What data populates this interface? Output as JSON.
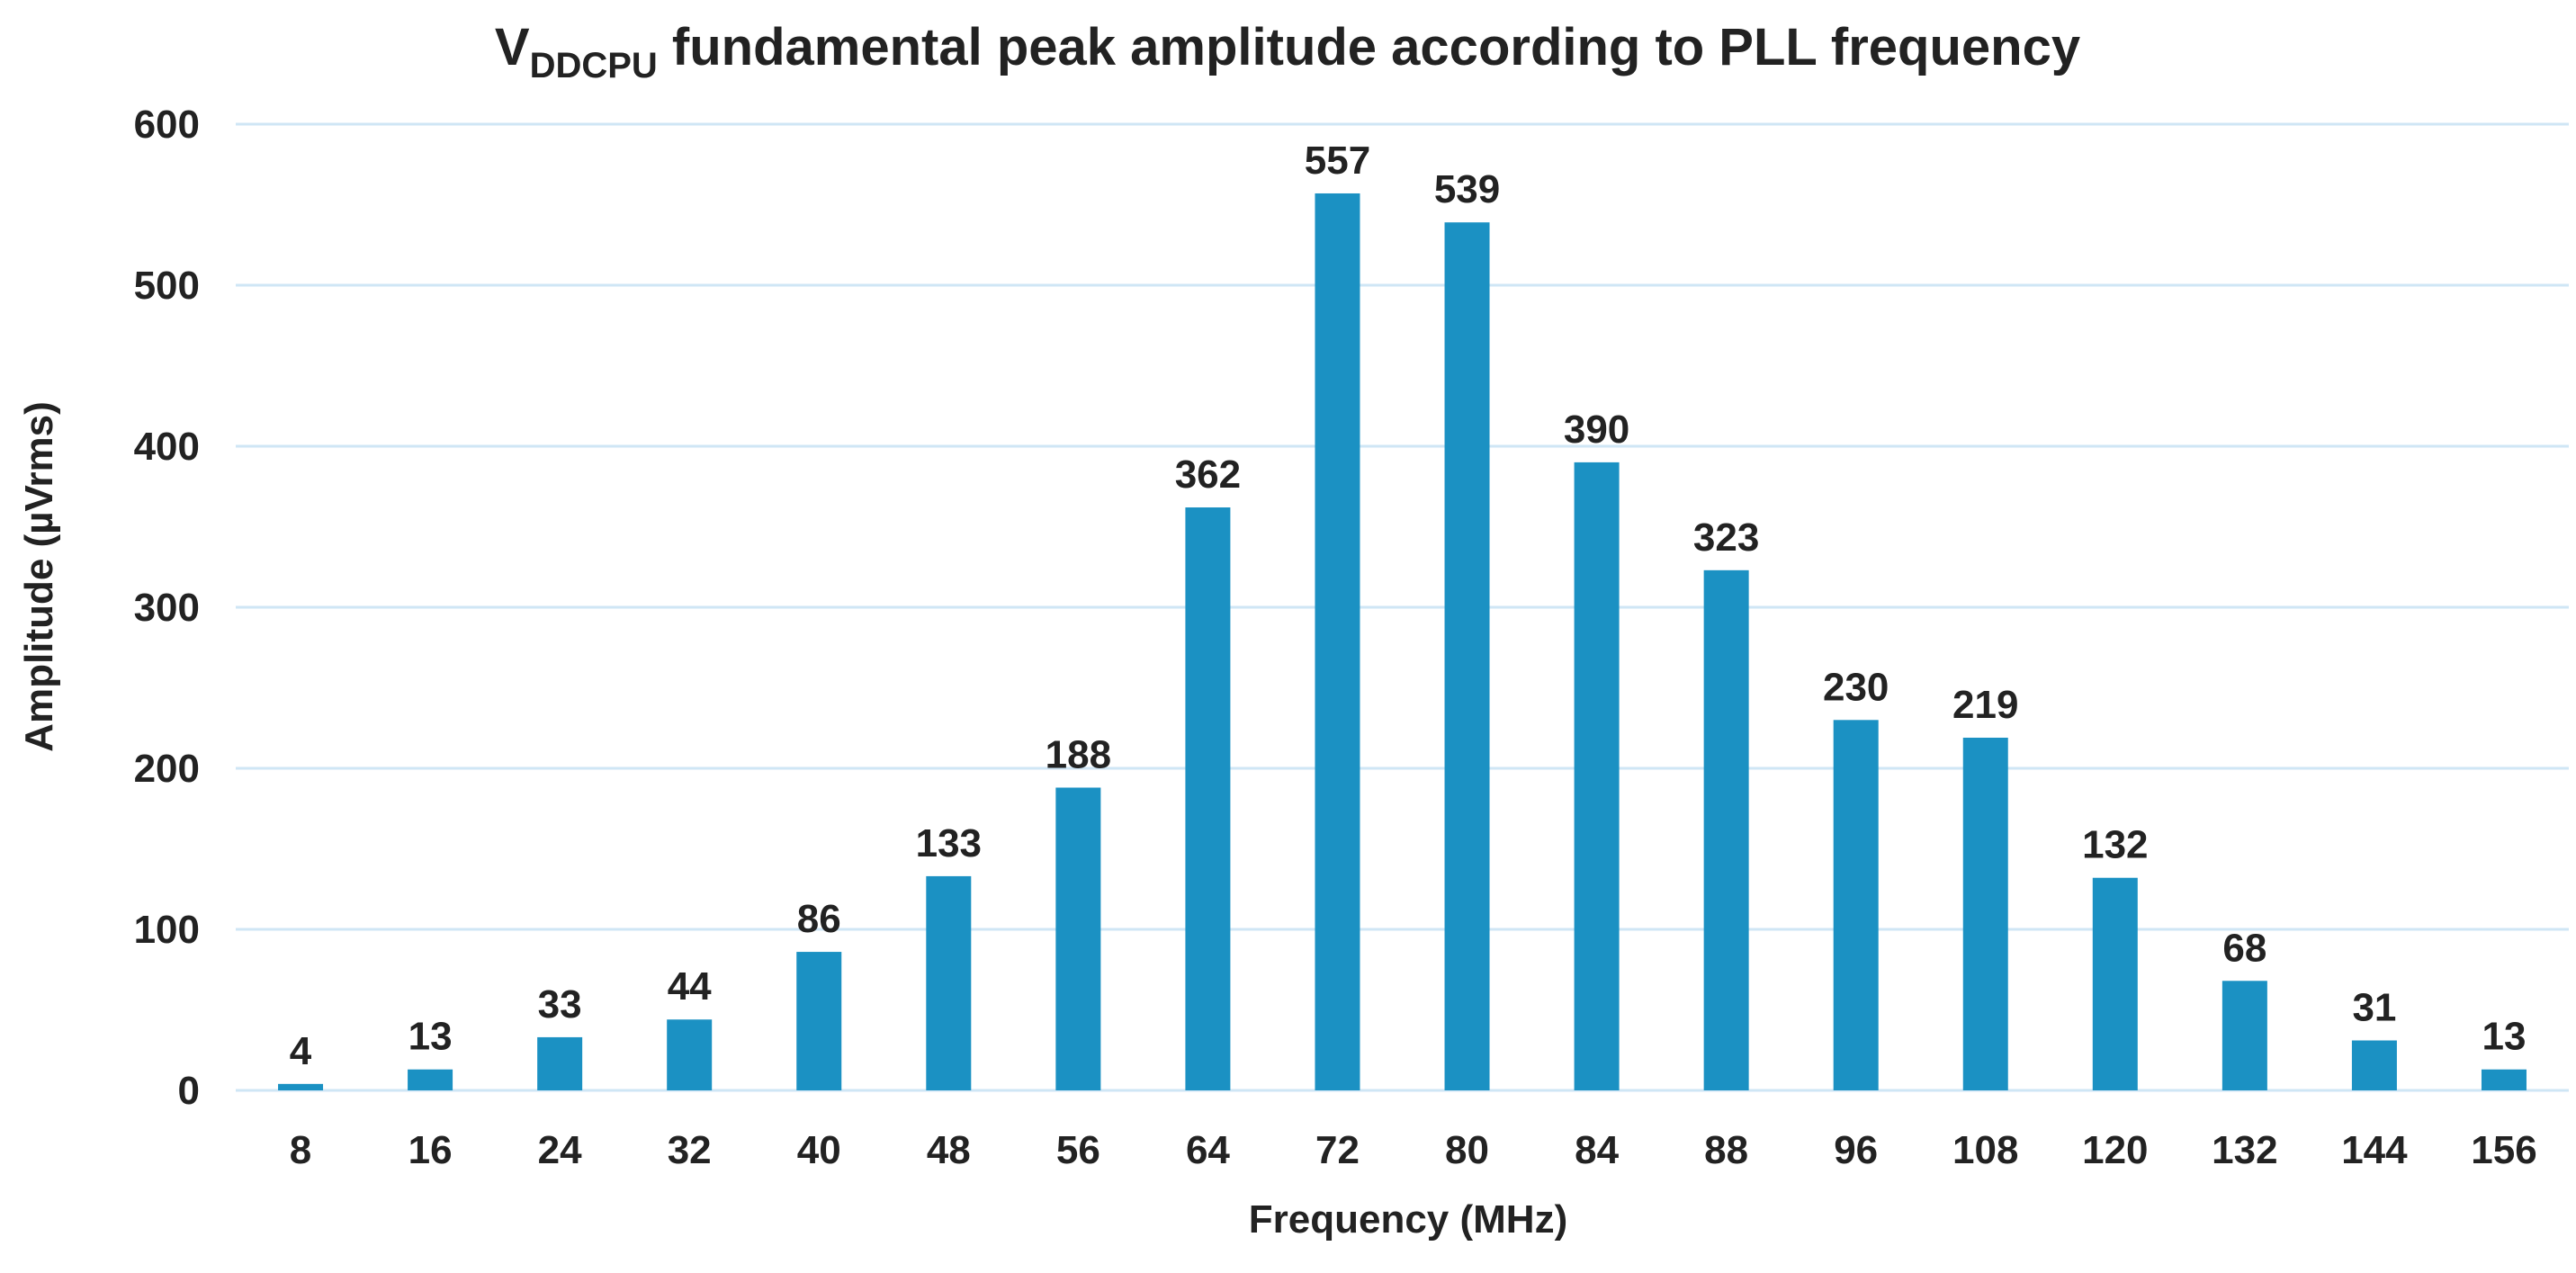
{
  "chart_data": {
    "type": "bar",
    "title_main": "V",
    "title_subscript": "DDCPU",
    "title_rest": " fundamental peak amplitude according to PLL frequency",
    "xlabel": "Frequency (MHz)",
    "ylabel": "Amplitude (µVrms)",
    "categories": [
      "8",
      "16",
      "24",
      "32",
      "40",
      "48",
      "56",
      "64",
      "72",
      "80",
      "84",
      "88",
      "96",
      "108",
      "120",
      "132",
      "144",
      "156"
    ],
    "values": [
      4,
      13,
      33,
      44,
      86,
      133,
      188,
      362,
      557,
      539,
      390,
      323,
      230,
      219,
      132,
      68,
      31,
      13
    ],
    "ylim": [
      0,
      600
    ],
    "yticks": [
      "0",
      "100",
      "200",
      "300",
      "400",
      "500",
      "600"
    ],
    "grid": true,
    "legend": "none",
    "colors": {
      "bar": "#1b91c3",
      "grid": "#cfe6f5",
      "text": "#222222"
    }
  }
}
